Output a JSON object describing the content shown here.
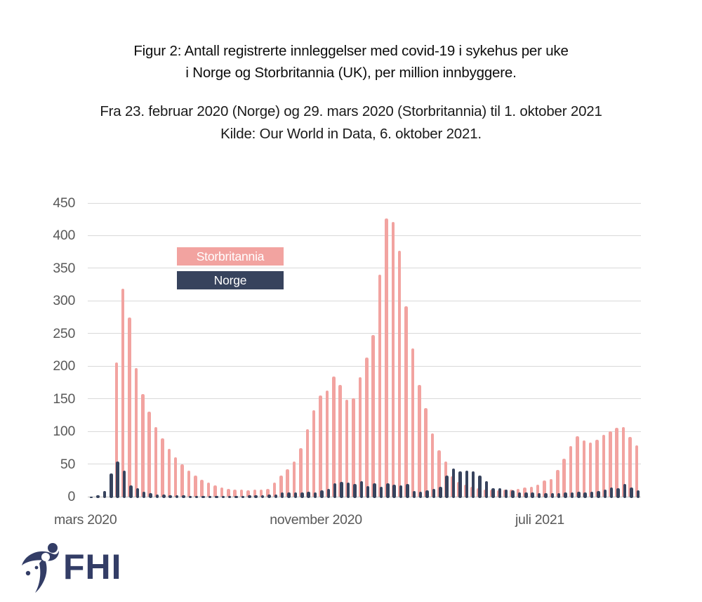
{
  "title": {
    "line1": "Figur 2: Antall registrerte innleggelser med covid-19 i sykehus per uke",
    "line2": "i Norge og Storbritannia (UK), per million innbyggere."
  },
  "subtitle": {
    "line1": "Fra 23. februar 2020 (Norge) og 29. mars 2020 (Storbritannia) til 1. oktober 2021",
    "line2": "Kilde: Our World in Data, 6. oktober 2021."
  },
  "legend": {
    "items": [
      {
        "label": "Storbritannia",
        "color": "#f2a3a0"
      },
      {
        "label": "Norge",
        "color": "#37435d"
      }
    ]
  },
  "logo": {
    "text": "FHI",
    "color": "#333d66"
  },
  "colors": {
    "uk_bar": "#f2a3a0",
    "norge_bar": "#37435d",
    "gridline": "#d9d9d9",
    "axis_line": "#bfbfbf",
    "axis_text": "#595959"
  },
  "chart_data": {
    "type": "bar",
    "title": "Antall registrerte innleggelser med covid-19 i sykehus per uke i Norge og Storbritannia (UK), per million innbyggere",
    "ylim": [
      0,
      450
    ],
    "y_ticks": [
      0,
      50,
      100,
      150,
      200,
      250,
      300,
      350,
      400,
      450
    ],
    "grid": true,
    "legend_position": "inside-top-left",
    "x_unit": "uke (februar 2020 – oktober 2021)",
    "x_tick_labels": [
      {
        "label": "mars 2020",
        "week_index": 0
      },
      {
        "label": "november 2020",
        "week_index": 35
      },
      {
        "label": "juli 2021",
        "week_index": 69
      }
    ],
    "weeks_total": 84,
    "series": [
      {
        "name": "Storbritannia",
        "color": "#f2a3a0",
        "values": [
          null,
          null,
          null,
          null,
          205,
          318,
          273,
          196,
          156,
          129,
          106,
          88,
          72,
          59,
          48,
          39,
          31,
          25,
          20,
          16,
          13,
          11,
          10,
          9.5,
          9,
          9.5,
          10,
          11,
          20,
          31,
          41,
          53,
          73,
          102,
          131,
          154,
          162,
          183,
          170,
          148,
          150,
          182,
          212,
          247,
          339,
          425,
          420,
          376,
          291,
          226,
          170,
          135,
          96,
          70,
          53,
          30,
          22,
          17,
          14,
          12,
          10,
          9.5,
          9,
          9.5,
          10,
          11,
          13,
          14,
          17,
          24,
          26,
          40,
          57,
          76,
          92,
          85,
          82,
          86,
          94,
          99,
          104,
          106,
          90,
          77
        ]
      },
      {
        "name": "Norge",
        "color": "#37435d",
        "values": [
          0.5,
          2,
          9,
          36,
          54,
          40,
          17,
          12.5,
          8,
          5,
          3.5,
          3,
          2.5,
          2,
          2,
          1.5,
          1.5,
          1.2,
          1.2,
          1,
          1,
          1,
          1.2,
          1.5,
          2,
          2,
          2.5,
          3,
          3.5,
          7,
          6.5,
          6,
          6.5,
          8,
          6.5,
          10,
          12,
          20,
          23,
          22,
          19,
          23.5,
          16,
          21,
          15.5,
          20,
          18.4,
          17,
          19,
          9,
          7.5,
          10,
          11.5,
          15,
          32,
          43,
          39,
          40,
          38.5,
          32,
          24,
          13,
          13,
          11,
          10,
          7,
          6,
          6,
          5.5,
          5,
          5,
          5.5,
          6,
          7,
          8,
          6,
          8,
          9,
          10.5,
          13.5,
          12.5,
          19.5,
          14,
          10
        ]
      }
    ]
  }
}
